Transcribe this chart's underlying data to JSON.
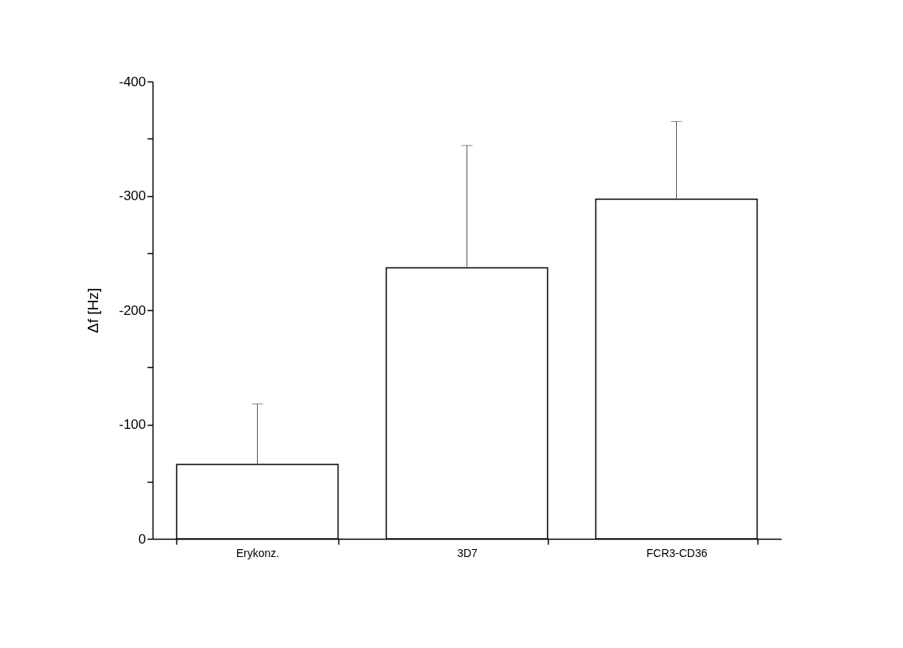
{
  "chart_data": {
    "type": "bar",
    "ylabel": "Δf [Hz]",
    "categories": [
      "Erykonz.",
      "3D7",
      "FCR3-CD36"
    ],
    "values": [
      -65,
      -237,
      -297
    ],
    "errors": [
      [
        -118,
        -65
      ],
      [
        -344,
        -237
      ],
      [
        -365,
        -297
      ]
    ],
    "color": "#ffffff",
    "ylim": [
      0,
      -400
    ],
    "yticks": [
      0,
      {
        "value": -50,
        "label": null
      },
      -100,
      {
        "value": -150,
        "label": null
      },
      -200,
      {
        "value": -250,
        "label": null
      },
      -300,
      {
        "value": -350,
        "label": null
      },
      -400
    ]
  }
}
